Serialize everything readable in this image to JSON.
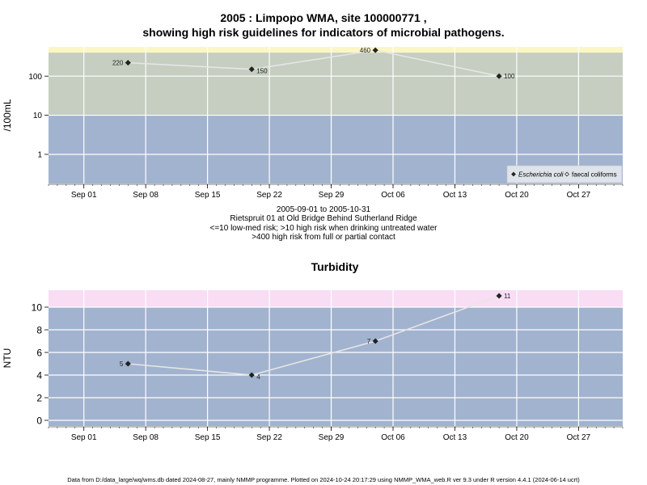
{
  "header": {
    "title_line1": "2005 : Limpopo WMA, site 100000771 ,",
    "title_line2": "showing high risk guidelines for indicators of microbial pathogens."
  },
  "micro_caption": {
    "line1": "2005-09-01 to 2005-10-31",
    "line2": "Rietspruit 01 at Old Bridge Behind Sutherland Ridge",
    "line3": "<=10 low-med risk; >10 high risk when drinking untreated water",
    "line4": ">400 high risk from full or partial contact"
  },
  "turbidity_title": "Turbidity",
  "footer": "Data from D:/data_large/wq/wms.db dated 2024-08-27, mainly NMMP programme. Plotted on 2024-10-24 20:17:29 using NMMP_WMA_web.R ver 9.3 under R version 4.4.1 (2024-06-14 ucrt)",
  "chart_data": [
    {
      "type": "line",
      "ylabel": "/100mL",
      "y_scale": "log10",
      "yticks": [
        1,
        10,
        100
      ],
      "ytick_labels": [
        "1",
        "10",
        "100"
      ],
      "xlim": [
        "2005-08-28",
        "2005-11-01"
      ],
      "xticks": [
        "Sep 01",
        "Sep 08",
        "Sep 15",
        "Sep 22",
        "Sep 29",
        "Oct 06",
        "Oct 13",
        "Oct 20",
        "Oct 27"
      ],
      "bands": [
        {
          "from": 0.18,
          "to": 10,
          "color": "#a2b3cf"
        },
        {
          "from": 10,
          "to": 400,
          "color": "#c5cec0"
        },
        {
          "from": 400,
          "to": 560,
          "color": "#fbf6c3"
        }
      ],
      "grid": true,
      "legend_position": "bottom-right",
      "series": [
        {
          "name": "Escherichia coli",
          "marker": "filled-diamond",
          "x": [
            "2005-09-06",
            "2005-09-20",
            "2005-10-04",
            "2005-10-18"
          ],
          "y": [
            220,
            150,
            460,
            100
          ],
          "labels": [
            "220",
            "150",
            "460",
            "100"
          ]
        },
        {
          "name": "faecal coliforms",
          "marker": "open-diamond",
          "x": [],
          "y": []
        }
      ]
    },
    {
      "type": "line",
      "title": "Turbidity",
      "ylabel": "NTU",
      "ylim": [
        -0.5,
        11.5
      ],
      "yticks": [
        0,
        2,
        4,
        6,
        8,
        10
      ],
      "ytick_labels": [
        "0",
        "2",
        "4",
        "6",
        "8",
        "10"
      ],
      "xlim": [
        "2005-08-28",
        "2005-11-01"
      ],
      "xticks": [
        "Sep 01",
        "Sep 08",
        "Sep 15",
        "Sep 22",
        "Sep 29",
        "Oct 06",
        "Oct 13",
        "Oct 20",
        "Oct 27"
      ],
      "bands": [
        {
          "from": -0.5,
          "to": 10,
          "color": "#a2b3cf"
        },
        {
          "from": 10,
          "to": 11.5,
          "color": "#f8ddf4"
        }
      ],
      "grid": true,
      "series": [
        {
          "name": "",
          "marker": "filled-diamond",
          "x": [
            "2005-09-06",
            "2005-09-20",
            "2005-10-04",
            "2005-10-18"
          ],
          "y": [
            5,
            4,
            7,
            11
          ],
          "labels": [
            "5",
            "4",
            "7",
            "11"
          ]
        }
      ]
    }
  ]
}
